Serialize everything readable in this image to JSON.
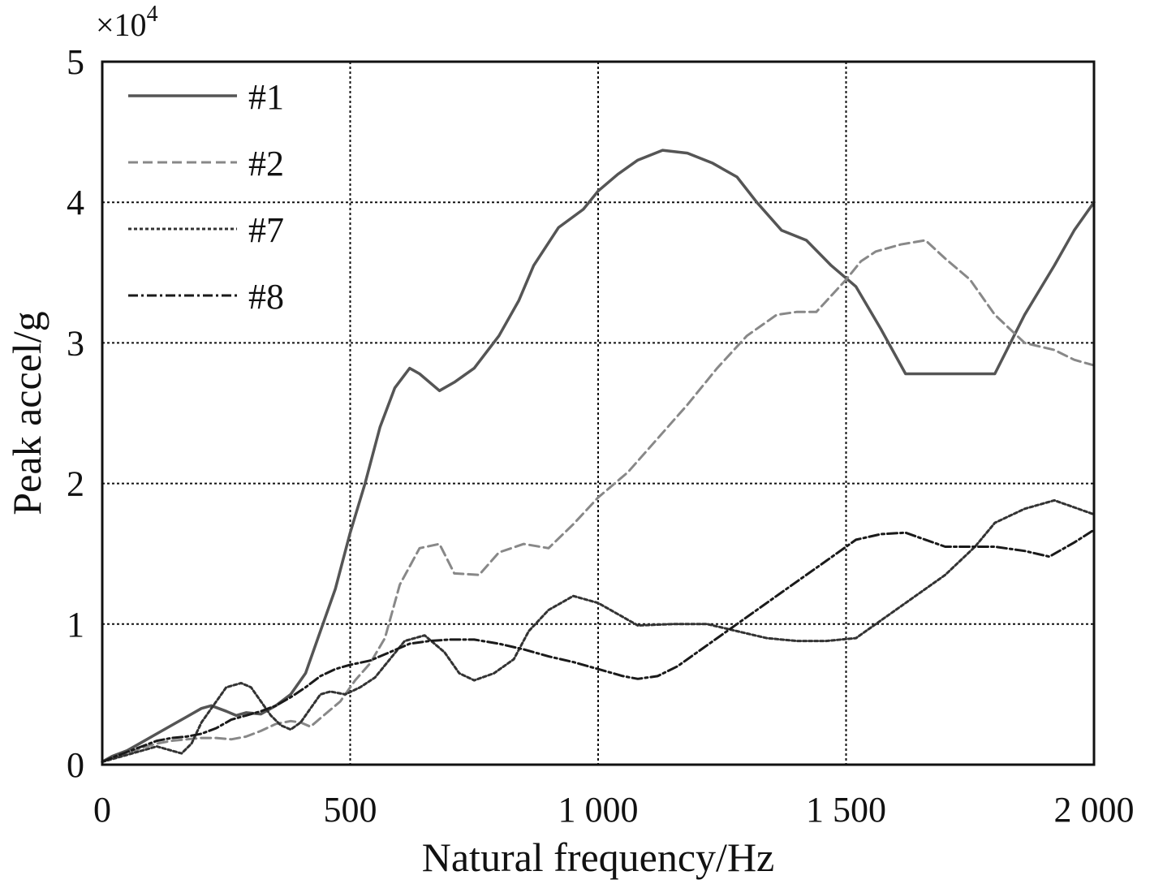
{
  "chart_data": {
    "type": "line",
    "title": "",
    "xlabel": "Natural frequency/Hz",
    "ylabel": "Peak accel/g",
    "y_scale_note_base": "×10",
    "y_scale_note_exp": "4",
    "xlim": [
      0,
      2000
    ],
    "ylim": [
      0,
      5
    ],
    "grid": true,
    "legend_position": "top-left",
    "x_ticks": [
      {
        "value": 0,
        "label": "0"
      },
      {
        "value": 500,
        "label": "500"
      },
      {
        "value": 1000,
        "label": "1 000"
      },
      {
        "value": 1500,
        "label": "1 500"
      },
      {
        "value": 2000,
        "label": "2 000"
      }
    ],
    "y_ticks": [
      {
        "value": 0,
        "label": "0"
      },
      {
        "value": 1,
        "label": "1"
      },
      {
        "value": 2,
        "label": "2"
      },
      {
        "value": 3,
        "label": "3"
      },
      {
        "value": 4,
        "label": "4"
      },
      {
        "value": 5,
        "label": "5"
      }
    ],
    "series": [
      {
        "name": "#1",
        "color": "#555555",
        "dash": "solid",
        "x": [
          0,
          20,
          50,
          80,
          110,
          140,
          170,
          200,
          220,
          250,
          270,
          290,
          320,
          350,
          380,
          410,
          440,
          470,
          500,
          530,
          560,
          590,
          620,
          640,
          680,
          710,
          750,
          800,
          840,
          870,
          920,
          970,
          1000,
          1040,
          1080,
          1130,
          1180,
          1230,
          1280,
          1320,
          1370,
          1420,
          1470,
          1520,
          1570,
          1620,
          1670,
          1700,
          1800,
          1860,
          1920,
          1960,
          2000
        ],
        "y": [
          0.02,
          0.06,
          0.1,
          0.16,
          0.22,
          0.28,
          0.34,
          0.4,
          0.42,
          0.38,
          0.35,
          0.37,
          0.36,
          0.42,
          0.5,
          0.65,
          0.95,
          1.25,
          1.65,
          2.0,
          2.4,
          2.68,
          2.82,
          2.78,
          2.66,
          2.72,
          2.82,
          3.05,
          3.3,
          3.55,
          3.82,
          3.95,
          4.08,
          4.2,
          4.3,
          4.37,
          4.35,
          4.28,
          4.18,
          4.0,
          3.8,
          3.73,
          3.55,
          3.4,
          3.1,
          2.78,
          2.78,
          2.78,
          2.78,
          3.2,
          3.55,
          3.8,
          4.0
        ]
      },
      {
        "name": "#2",
        "color": "#888888",
        "dash": "dashed",
        "x": [
          0,
          20,
          50,
          80,
          110,
          140,
          170,
          200,
          230,
          260,
          290,
          320,
          350,
          380,
          400,
          420,
          450,
          480,
          510,
          540,
          570,
          600,
          640,
          680,
          710,
          760,
          800,
          850,
          900,
          950,
          1000,
          1060,
          1120,
          1180,
          1240,
          1300,
          1360,
          1400,
          1440,
          1500,
          1530,
          1560,
          1610,
          1660,
          1700,
          1750,
          1800,
          1860,
          1920,
          1960,
          2000
        ],
        "y": [
          0.02,
          0.05,
          0.08,
          0.12,
          0.15,
          0.17,
          0.18,
          0.19,
          0.19,
          0.18,
          0.2,
          0.24,
          0.29,
          0.31,
          0.3,
          0.27,
          0.36,
          0.45,
          0.6,
          0.72,
          0.9,
          1.28,
          1.54,
          1.57,
          1.36,
          1.35,
          1.51,
          1.57,
          1.54,
          1.71,
          1.9,
          2.08,
          2.32,
          2.56,
          2.82,
          3.05,
          3.2,
          3.22,
          3.22,
          3.45,
          3.58,
          3.65,
          3.7,
          3.73,
          3.6,
          3.45,
          3.2,
          3.0,
          2.95,
          2.88,
          2.84
        ]
      },
      {
        "name": "#7",
        "color": "#333333",
        "dash": "dotted",
        "x": [
          0,
          20,
          50,
          80,
          110,
          140,
          160,
          180,
          200,
          230,
          250,
          280,
          300,
          320,
          340,
          360,
          380,
          400,
          420,
          440,
          460,
          490,
          520,
          550,
          580,
          610,
          650,
          690,
          720,
          750,
          790,
          830,
          860,
          900,
          950,
          1000,
          1050,
          1080,
          1150,
          1220,
          1280,
          1340,
          1400,
          1460,
          1520,
          1580,
          1640,
          1700,
          1760,
          1800,
          1860,
          1920,
          1960,
          2000
        ],
        "y": [
          0.02,
          0.04,
          0.07,
          0.1,
          0.13,
          0.1,
          0.08,
          0.15,
          0.3,
          0.45,
          0.55,
          0.58,
          0.55,
          0.45,
          0.35,
          0.28,
          0.25,
          0.3,
          0.4,
          0.5,
          0.52,
          0.5,
          0.55,
          0.62,
          0.75,
          0.88,
          0.92,
          0.8,
          0.65,
          0.6,
          0.65,
          0.75,
          0.95,
          1.1,
          1.2,
          1.15,
          1.05,
          0.99,
          1.0,
          1.0,
          0.95,
          0.9,
          0.88,
          0.88,
          0.9,
          1.05,
          1.2,
          1.35,
          1.55,
          1.72,
          1.82,
          1.88,
          1.83,
          1.78
        ]
      },
      {
        "name": "#8",
        "color": "#1a1a1a",
        "dash": "dashdot",
        "x": [
          0,
          20,
          50,
          80,
          110,
          140,
          170,
          200,
          230,
          260,
          290,
          320,
          350,
          380,
          410,
          440,
          470,
          500,
          540,
          580,
          620,
          660,
          700,
          750,
          800,
          850,
          900,
          950,
          1000,
          1050,
          1080,
          1120,
          1160,
          1220,
          1280,
          1340,
          1400,
          1460,
          1520,
          1570,
          1620,
          1660,
          1700,
          1760,
          1800,
          1860,
          1910,
          1960,
          2000
        ],
        "y": [
          0.02,
          0.05,
          0.09,
          0.13,
          0.17,
          0.19,
          0.2,
          0.22,
          0.26,
          0.32,
          0.35,
          0.38,
          0.42,
          0.48,
          0.55,
          0.63,
          0.68,
          0.71,
          0.74,
          0.8,
          0.86,
          0.88,
          0.89,
          0.89,
          0.86,
          0.82,
          0.77,
          0.73,
          0.68,
          0.63,
          0.61,
          0.63,
          0.7,
          0.85,
          1.0,
          1.15,
          1.3,
          1.45,
          1.6,
          1.64,
          1.65,
          1.6,
          1.55,
          1.55,
          1.55,
          1.52,
          1.48,
          1.58,
          1.67
        ]
      }
    ]
  }
}
